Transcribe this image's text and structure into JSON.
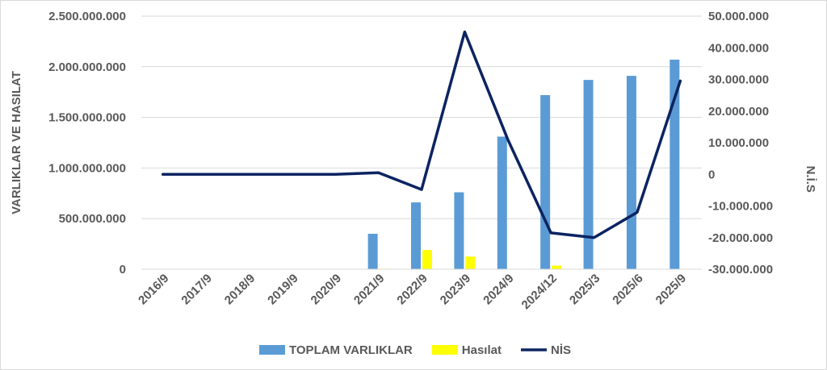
{
  "chart_data": {
    "type": "bar",
    "categories": [
      "2016/9",
      "2017/9",
      "2018/9",
      "2019/9",
      "2020/9",
      "2021/9",
      "2022/9",
      "2023/9",
      "2024/9",
      "2024/12",
      "2025/3",
      "2025/6",
      "2025/9"
    ],
    "series": [
      {
        "name": "TOPLAM VARLIKLAR",
        "type": "bar",
        "axis": "left",
        "color": "#5b9bd5",
        "values": [
          0,
          0,
          0,
          0,
          0,
          350000000,
          660000000,
          760000000,
          1310000000,
          1720000000,
          1870000000,
          1910000000,
          2070000000
        ]
      },
      {
        "name": "Hasılat",
        "type": "bar",
        "axis": "left",
        "color": "#ffff00",
        "values": [
          0,
          0,
          0,
          0,
          0,
          5000000,
          190000000,
          125000000,
          0,
          35000000,
          0,
          0,
          0
        ]
      },
      {
        "name": "NİS",
        "type": "line",
        "axis": "right",
        "color": "#0c2461",
        "values": [
          0,
          0,
          0,
          0,
          0,
          500000,
          -4800000,
          45000000,
          11000000,
          -18500000,
          -20000000,
          -12000000,
          29500000
        ]
      }
    ],
    "y_left": {
      "label": "VARLIKLAR VE HASILAT",
      "ylim": [
        0,
        2500000000
      ],
      "ticks": [
        0,
        500000000,
        1000000000,
        1500000000,
        2000000000,
        2500000000
      ],
      "tick_labels": [
        "0",
        "500.000.000",
        "1.000.000.000",
        "1.500.000.000",
        "2.000.000.000",
        "2.500.000.000"
      ]
    },
    "y_right": {
      "label": "N.İ.S",
      "ylim": [
        -30000000,
        50000000
      ],
      "ticks": [
        -30000000,
        -20000000,
        -10000000,
        0,
        10000000,
        20000000,
        30000000,
        40000000,
        50000000
      ],
      "tick_labels": [
        "-30.000.000",
        "-20.000.000",
        "-10.000.000",
        "0",
        "10.000.000",
        "20.000.000",
        "30.000.000",
        "40.000.000",
        "50.000.000"
      ]
    },
    "legend": {
      "position": "bottom"
    },
    "grid": true
  }
}
